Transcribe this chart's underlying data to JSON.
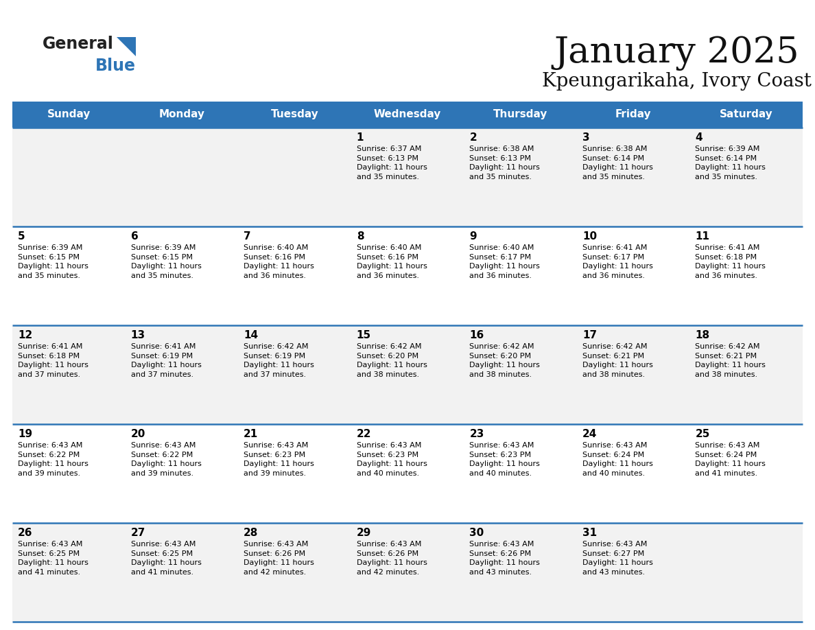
{
  "title": "January 2025",
  "subtitle": "Kpeungarikaha, Ivory Coast",
  "header_color": "#2E75B6",
  "header_text_color": "#FFFFFF",
  "odd_row_color": "#F2F2F2",
  "even_row_color": "#FFFFFF",
  "text_color": "#000000",
  "border_color": "#2E75B6",
  "day_headers": [
    "Sunday",
    "Monday",
    "Tuesday",
    "Wednesday",
    "Thursday",
    "Friday",
    "Saturday"
  ],
  "logo_text1": "General",
  "logo_text2": "Blue",
  "logo_triangle_color": "#2E75B6",
  "calendar_data": [
    [
      {
        "day": "",
        "info": ""
      },
      {
        "day": "",
        "info": ""
      },
      {
        "day": "",
        "info": ""
      },
      {
        "day": "1",
        "info": "Sunrise: 6:37 AM\nSunset: 6:13 PM\nDaylight: 11 hours\nand 35 minutes."
      },
      {
        "day": "2",
        "info": "Sunrise: 6:38 AM\nSunset: 6:13 PM\nDaylight: 11 hours\nand 35 minutes."
      },
      {
        "day": "3",
        "info": "Sunrise: 6:38 AM\nSunset: 6:14 PM\nDaylight: 11 hours\nand 35 minutes."
      },
      {
        "day": "4",
        "info": "Sunrise: 6:39 AM\nSunset: 6:14 PM\nDaylight: 11 hours\nand 35 minutes."
      }
    ],
    [
      {
        "day": "5",
        "info": "Sunrise: 6:39 AM\nSunset: 6:15 PM\nDaylight: 11 hours\nand 35 minutes."
      },
      {
        "day": "6",
        "info": "Sunrise: 6:39 AM\nSunset: 6:15 PM\nDaylight: 11 hours\nand 35 minutes."
      },
      {
        "day": "7",
        "info": "Sunrise: 6:40 AM\nSunset: 6:16 PM\nDaylight: 11 hours\nand 36 minutes."
      },
      {
        "day": "8",
        "info": "Sunrise: 6:40 AM\nSunset: 6:16 PM\nDaylight: 11 hours\nand 36 minutes."
      },
      {
        "day": "9",
        "info": "Sunrise: 6:40 AM\nSunset: 6:17 PM\nDaylight: 11 hours\nand 36 minutes."
      },
      {
        "day": "10",
        "info": "Sunrise: 6:41 AM\nSunset: 6:17 PM\nDaylight: 11 hours\nand 36 minutes."
      },
      {
        "day": "11",
        "info": "Sunrise: 6:41 AM\nSunset: 6:18 PM\nDaylight: 11 hours\nand 36 minutes."
      }
    ],
    [
      {
        "day": "12",
        "info": "Sunrise: 6:41 AM\nSunset: 6:18 PM\nDaylight: 11 hours\nand 37 minutes."
      },
      {
        "day": "13",
        "info": "Sunrise: 6:41 AM\nSunset: 6:19 PM\nDaylight: 11 hours\nand 37 minutes."
      },
      {
        "day": "14",
        "info": "Sunrise: 6:42 AM\nSunset: 6:19 PM\nDaylight: 11 hours\nand 37 minutes."
      },
      {
        "day": "15",
        "info": "Sunrise: 6:42 AM\nSunset: 6:20 PM\nDaylight: 11 hours\nand 38 minutes."
      },
      {
        "day": "16",
        "info": "Sunrise: 6:42 AM\nSunset: 6:20 PM\nDaylight: 11 hours\nand 38 minutes."
      },
      {
        "day": "17",
        "info": "Sunrise: 6:42 AM\nSunset: 6:21 PM\nDaylight: 11 hours\nand 38 minutes."
      },
      {
        "day": "18",
        "info": "Sunrise: 6:42 AM\nSunset: 6:21 PM\nDaylight: 11 hours\nand 38 minutes."
      }
    ],
    [
      {
        "day": "19",
        "info": "Sunrise: 6:43 AM\nSunset: 6:22 PM\nDaylight: 11 hours\nand 39 minutes."
      },
      {
        "day": "20",
        "info": "Sunrise: 6:43 AM\nSunset: 6:22 PM\nDaylight: 11 hours\nand 39 minutes."
      },
      {
        "day": "21",
        "info": "Sunrise: 6:43 AM\nSunset: 6:23 PM\nDaylight: 11 hours\nand 39 minutes."
      },
      {
        "day": "22",
        "info": "Sunrise: 6:43 AM\nSunset: 6:23 PM\nDaylight: 11 hours\nand 40 minutes."
      },
      {
        "day": "23",
        "info": "Sunrise: 6:43 AM\nSunset: 6:23 PM\nDaylight: 11 hours\nand 40 minutes."
      },
      {
        "day": "24",
        "info": "Sunrise: 6:43 AM\nSunset: 6:24 PM\nDaylight: 11 hours\nand 40 minutes."
      },
      {
        "day": "25",
        "info": "Sunrise: 6:43 AM\nSunset: 6:24 PM\nDaylight: 11 hours\nand 41 minutes."
      }
    ],
    [
      {
        "day": "26",
        "info": "Sunrise: 6:43 AM\nSunset: 6:25 PM\nDaylight: 11 hours\nand 41 minutes."
      },
      {
        "day": "27",
        "info": "Sunrise: 6:43 AM\nSunset: 6:25 PM\nDaylight: 11 hours\nand 41 minutes."
      },
      {
        "day": "28",
        "info": "Sunrise: 6:43 AM\nSunset: 6:26 PM\nDaylight: 11 hours\nand 42 minutes."
      },
      {
        "day": "29",
        "info": "Sunrise: 6:43 AM\nSunset: 6:26 PM\nDaylight: 11 hours\nand 42 minutes."
      },
      {
        "day": "30",
        "info": "Sunrise: 6:43 AM\nSunset: 6:26 PM\nDaylight: 11 hours\nand 43 minutes."
      },
      {
        "day": "31",
        "info": "Sunrise: 6:43 AM\nSunset: 6:27 PM\nDaylight: 11 hours\nand 43 minutes."
      },
      {
        "day": "",
        "info": ""
      }
    ]
  ],
  "figsize": [
    11.88,
    9.18
  ],
  "dpi": 100
}
